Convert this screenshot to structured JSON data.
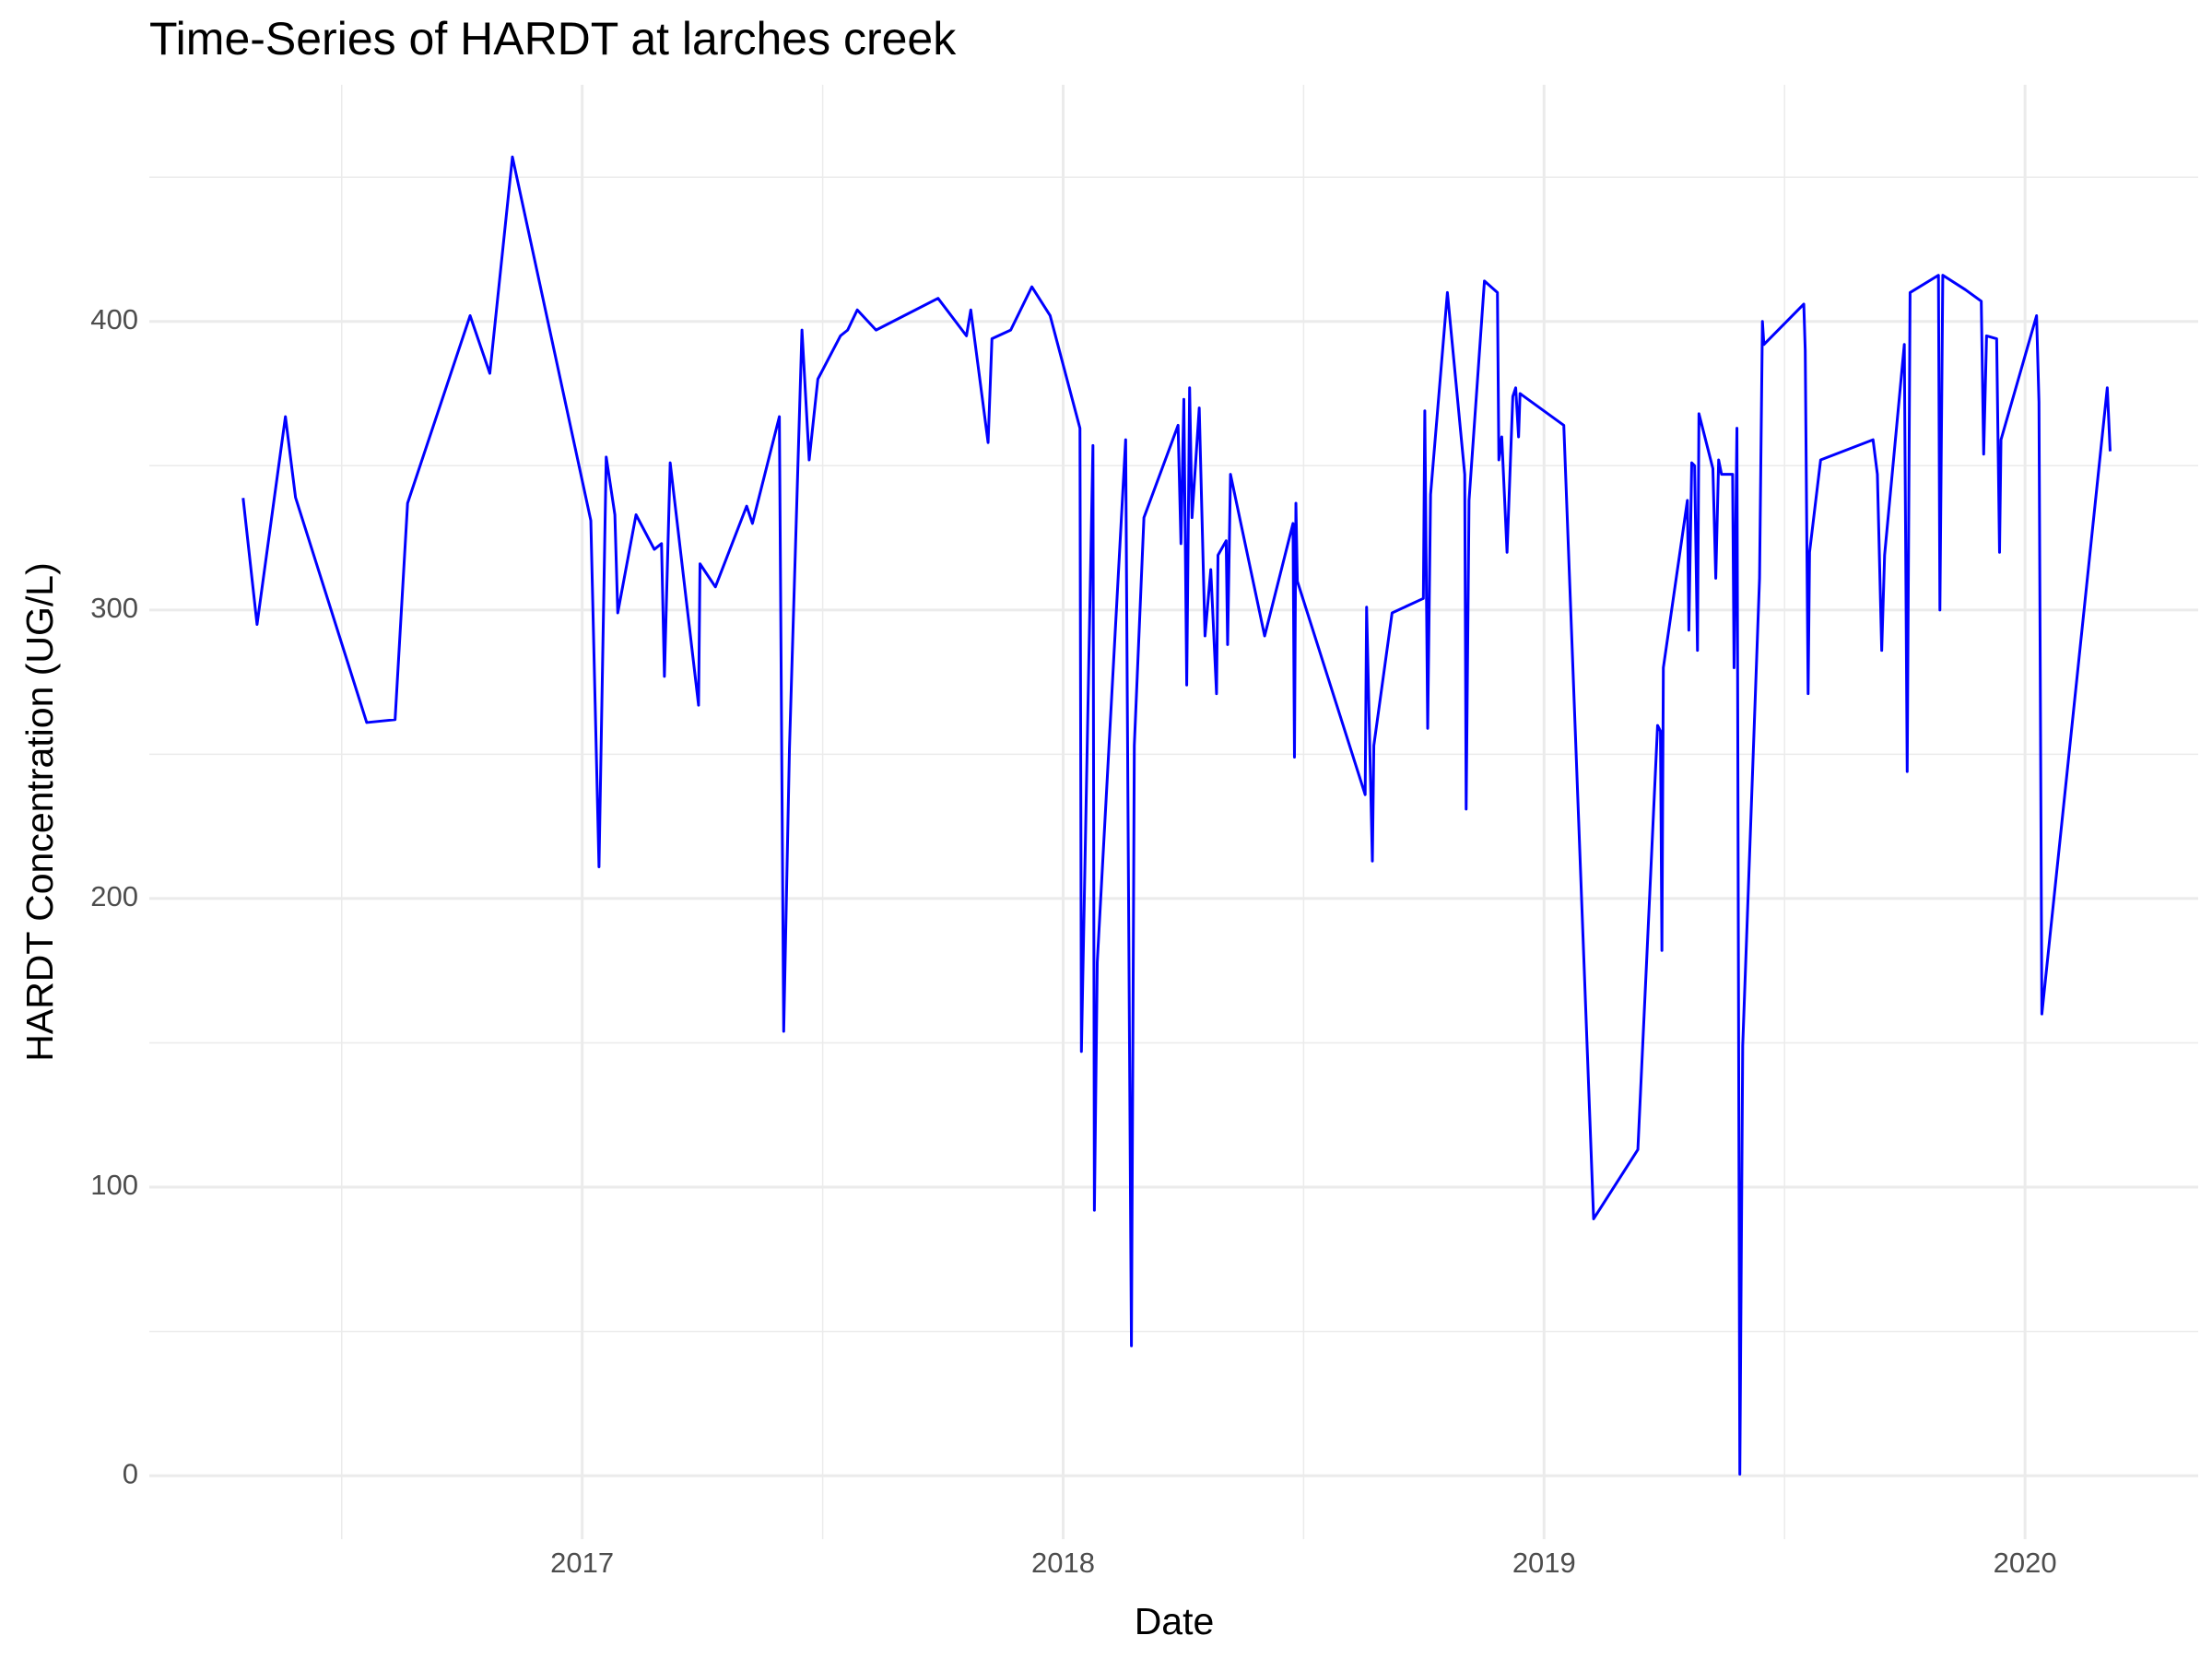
{
  "chart_data": {
    "type": "line",
    "title": "Time-Series of HARDT at larches creek",
    "x_label": "Date",
    "y_label": "HARDT Concentration (UG/L)",
    "grid": true,
    "xlim": [
      2016.1,
      2020.36
    ],
    "ylim": [
      -22,
      482
    ],
    "xticks": [
      2017,
      2018,
      2019,
      2020
    ],
    "yticks": [
      0,
      100,
      200,
      300,
      400
    ],
    "x": [
      2016.295,
      2016.324,
      2016.383,
      2016.404,
      2016.552,
      2016.611,
      2016.637,
      2016.767,
      2016.808,
      2016.855,
      2017.018,
      2017.035,
      2017.05,
      2017.068,
      2017.074,
      2017.112,
      2017.15,
      2017.165,
      2017.171,
      2017.183,
      2017.242,
      2017.245,
      2017.277,
      2017.342,
      2017.354,
      2017.41,
      2017.419,
      2017.431,
      2017.457,
      2017.472,
      2017.49,
      2017.537,
      2017.552,
      2017.572,
      2017.611,
      2017.74,
      2017.799,
      2017.808,
      2017.844,
      2017.852,
      2017.891,
      2017.935,
      2017.973,
      2018.035,
      2018.038,
      2018.062,
      2018.065,
      2018.071,
      2018.13,
      2018.139,
      2018.142,
      2018.148,
      2018.168,
      2018.239,
      2018.245,
      2018.251,
      2018.257,
      2018.263,
      2018.268,
      2018.283,
      2018.295,
      2018.307,
      2018.319,
      2018.322,
      2018.339,
      2018.342,
      2018.348,
      2018.419,
      2018.478,
      2018.481,
      2018.484,
      2018.487,
      2018.628,
      2018.631,
      2018.643,
      2018.646,
      2018.684,
      2018.749,
      2018.752,
      2018.758,
      2018.764,
      2018.799,
      2018.835,
      2018.838,
      2018.844,
      2018.876,
      2018.903,
      2018.906,
      2018.912,
      2018.923,
      2018.935,
      2018.941,
      2018.947,
      2018.95,
      2019.041,
      2019.103,
      2019.195,
      2019.236,
      2019.242,
      2019.245,
      2019.248,
      2019.298,
      2019.301,
      2019.307,
      2019.313,
      2019.319,
      2019.322,
      2019.351,
      2019.357,
      2019.363,
      2019.369,
      2019.392,
      2019.395,
      2019.401,
      2019.407,
      2019.413,
      2019.448,
      2019.454,
      2019.457,
      2019.54,
      2019.543,
      2019.549,
      2019.552,
      2019.575,
      2019.684,
      2019.693,
      2019.702,
      2019.708,
      2019.749,
      2019.755,
      2019.761,
      2019.82,
      2019.823,
      2019.829,
      2019.876,
      2019.909,
      2019.914,
      2019.92,
      2019.941,
      2019.947,
      2019.95,
      2020.024,
      2020.029,
      2020.035,
      2020.171,
      2020.177
    ],
    "series": [
      {
        "name": "HARDT",
        "color": "#0000ff",
        "values": [
          338.8,
          295,
          367,
          339,
          261,
          262,
          337,
          402,
          382,
          457,
          331,
          211,
          353,
          333,
          299,
          333,
          321,
          323,
          277,
          351,
          267,
          316,
          308,
          336,
          330,
          367,
          154,
          252,
          397,
          352,
          380,
          395,
          397,
          404,
          397,
          408,
          395,
          404,
          358,
          394,
          397,
          412,
          402,
          363,
          147,
          357,
          92,
          178,
          359,
          124,
          45,
          253,
          332,
          364,
          323,
          373,
          274,
          377,
          332,
          370,
          291,
          314,
          271,
          319,
          324,
          288,
          347,
          291,
          330,
          249,
          337,
          310,
          236,
          301,
          213,
          253,
          299,
          304,
          369,
          259,
          340,
          410,
          347,
          231,
          338,
          414,
          410,
          352,
          360,
          320,
          374,
          377,
          360,
          375,
          364,
          89,
          113,
          260,
          258,
          182,
          280,
          338,
          293,
          351,
          350,
          286,
          368,
          349,
          311,
          352,
          347,
          347,
          280,
          363,
          0.5,
          149,
          311,
          400,
          392,
          406,
          390,
          271,
          320,
          352,
          359,
          347,
          286,
          319,
          392,
          244,
          410,
          416,
          300,
          416,
          411,
          407,
          354,
          395,
          394,
          320,
          359,
          402,
          372,
          160,
          377,
          355
        ]
      }
    ]
  }
}
